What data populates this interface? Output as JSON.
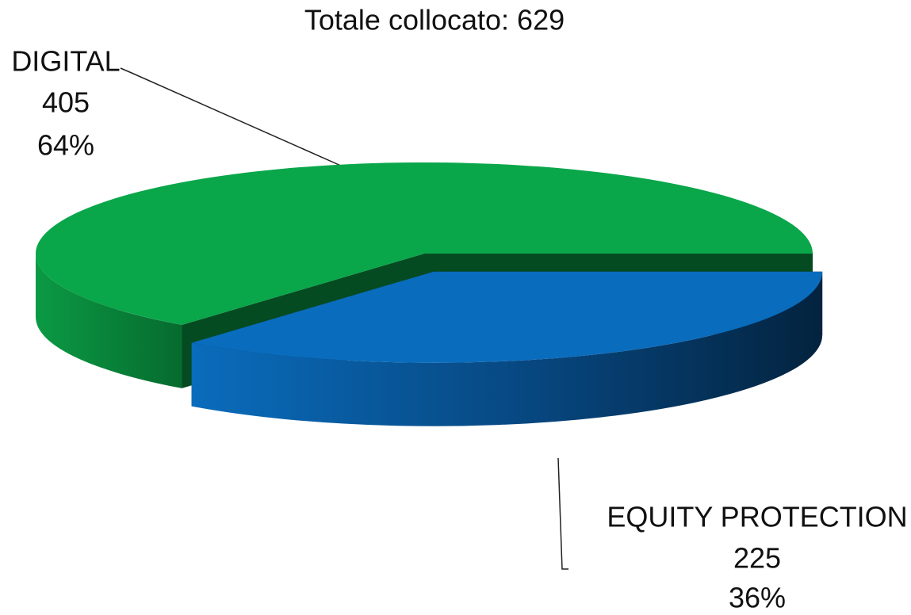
{
  "chart_data": {
    "type": "pie3d",
    "title": "Totale collocato: 629",
    "categories": [
      "DIGITAL",
      "EQUITY PROTECTION"
    ],
    "values": [
      405,
      225
    ],
    "percent_labels": [
      "64%",
      "36%"
    ],
    "colors": [
      "#0aa64a",
      "#0a6cbc"
    ],
    "exploded": [
      false,
      true
    ]
  }
}
